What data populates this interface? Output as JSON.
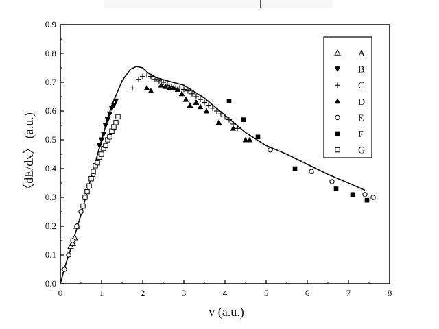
{
  "chart_data": {
    "type": "scatter",
    "title": "",
    "xlabel": "v (a.u.)",
    "ylabel": "〈dE/dx〉 (a.u.)",
    "xlim": [
      0,
      8
    ],
    "ylim": [
      0,
      0.9
    ],
    "x_ticks": [
      "0",
      "1",
      "2",
      "3",
      "4",
      "5",
      "6",
      "7",
      "8"
    ],
    "y_ticks": [
      "0.0",
      "0.1",
      "0.2",
      "0.3",
      "0.4",
      "0.5",
      "0.6",
      "0.7",
      "0.8",
      "0.9"
    ],
    "grid": false,
    "legend_position": "top-right",
    "curve": {
      "x": [
        0,
        0.1,
        0.25,
        0.5,
        0.75,
        1.0,
        1.25,
        1.5,
        1.7,
        1.85,
        2.0,
        2.15,
        2.35,
        2.6,
        3.0,
        3.5,
        4.0,
        4.5,
        5.0,
        5.5,
        6.0,
        6.5,
        7.0,
        7.4
      ],
      "y": [
        0,
        0.055,
        0.12,
        0.24,
        0.37,
        0.5,
        0.62,
        0.705,
        0.745,
        0.755,
        0.75,
        0.73,
        0.715,
        0.705,
        0.69,
        0.645,
        0.585,
        0.525,
        0.48,
        0.45,
        0.415,
        0.38,
        0.35,
        0.325
      ]
    },
    "series": [
      {
        "name": "A",
        "marker": "triangle-open",
        "x": [
          0.25,
          0.3,
          0.35,
          0.4
        ],
        "y": [
          0.13,
          0.14,
          0.16,
          0.2
        ]
      },
      {
        "name": "B",
        "marker": "triangle-down-filled",
        "x": [
          0.95,
          1.0,
          1.05,
          1.1,
          1.15,
          1.2,
          1.25,
          1.3,
          1.35
        ],
        "y": [
          0.48,
          0.5,
          0.52,
          0.55,
          0.57,
          0.59,
          0.61,
          0.62,
          0.635
        ]
      },
      {
        "name": "C",
        "marker": "plus",
        "x": [
          1.75,
          1.9,
          2.0,
          2.1,
          2.2,
          2.3,
          2.4,
          2.5,
          2.6,
          2.7,
          2.8,
          2.9,
          3.0,
          3.1,
          3.2,
          3.3,
          3.4,
          3.5,
          3.6,
          3.7,
          3.8,
          3.9,
          4.0,
          4.1,
          4.2,
          4.3
        ],
        "y": [
          0.68,
          0.71,
          0.72,
          0.725,
          0.72,
          0.71,
          0.705,
          0.7,
          0.69,
          0.685,
          0.68,
          0.68,
          0.675,
          0.67,
          0.66,
          0.65,
          0.64,
          0.63,
          0.62,
          0.61,
          0.6,
          0.59,
          0.58,
          0.57,
          0.555,
          0.54
        ]
      },
      {
        "name": "D",
        "marker": "triangle-filled",
        "x": [
          2.1,
          2.2,
          2.45,
          2.55,
          2.65,
          2.75,
          2.85,
          2.95,
          3.05,
          3.15,
          3.3,
          3.4,
          3.55,
          3.85,
          4.2,
          4.5,
          4.6
        ],
        "y": [
          0.68,
          0.67,
          0.69,
          0.685,
          0.68,
          0.68,
          0.675,
          0.66,
          0.64,
          0.62,
          0.63,
          0.615,
          0.6,
          0.56,
          0.54,
          0.5,
          0.5
        ]
      },
      {
        "name": "E",
        "marker": "circle-open",
        "x": [
          0.1,
          0.2,
          0.3,
          0.4,
          0.5,
          0.6,
          0.7,
          0.8,
          0.9,
          5.1,
          6.1,
          6.6,
          7.4,
          7.6
        ],
        "y": [
          0.05,
          0.1,
          0.15,
          0.2,
          0.25,
          0.3,
          0.34,
          0.38,
          0.42,
          0.465,
          0.39,
          0.355,
          0.31,
          0.3
        ]
      },
      {
        "name": "F",
        "marker": "square-filled",
        "x": [
          4.1,
          4.45,
          4.8,
          5.7,
          6.7,
          7.1,
          7.45
        ],
        "y": [
          0.635,
          0.57,
          0.51,
          0.4,
          0.33,
          0.31,
          0.29
        ]
      },
      {
        "name": "G",
        "marker": "square-open",
        "x": [
          0.55,
          0.6,
          0.65,
          0.7,
          0.75,
          0.8,
          0.85,
          0.9,
          0.95,
          1.0,
          1.05,
          1.1,
          1.15,
          1.2,
          1.25,
          1.3,
          1.35,
          1.4
        ],
        "y": [
          0.27,
          0.3,
          0.32,
          0.34,
          0.365,
          0.39,
          0.41,
          0.42,
          0.44,
          0.45,
          0.47,
          0.48,
          0.5,
          0.51,
          0.53,
          0.545,
          0.56,
          0.58
        ]
      }
    ]
  }
}
